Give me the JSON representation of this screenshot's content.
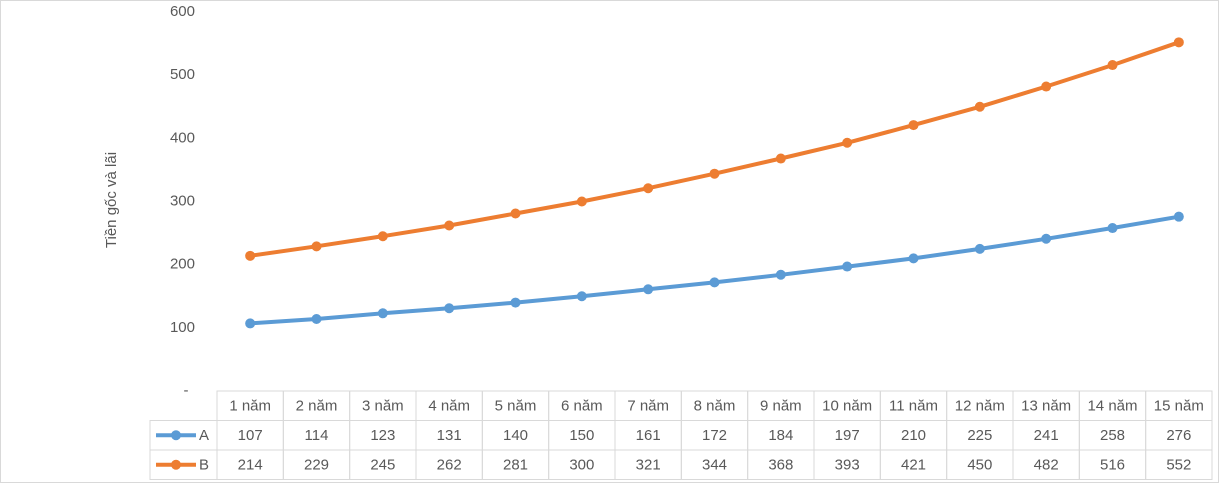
{
  "chart_data": {
    "type": "line",
    "ylabel": "Tiền gốc và lãi",
    "categories": [
      "1 năm",
      "2 năm",
      "3 năm",
      "4 năm",
      "5 năm",
      "6 năm",
      "7 năm",
      "8 năm",
      "9 năm",
      "10 năm",
      "11 năm",
      "12 năm",
      "13 năm",
      "14 năm",
      "15 năm"
    ],
    "series": [
      {
        "name": "A",
        "color": "#5b9bd5",
        "values": [
          107,
          114,
          123,
          131,
          140,
          150,
          161,
          172,
          184,
          197,
          210,
          225,
          241,
          258,
          276
        ]
      },
      {
        "name": "B",
        "color": "#ed7d31",
        "values": [
          214,
          229,
          245,
          262,
          281,
          300,
          321,
          344,
          368,
          393,
          421,
          450,
          482,
          516,
          552
        ]
      }
    ],
    "ylim": [
      0,
      600
    ],
    "yticks": [
      {
        "value": 0,
        "label": "-"
      },
      100,
      200,
      300,
      400,
      500,
      600
    ],
    "grid": false
  }
}
